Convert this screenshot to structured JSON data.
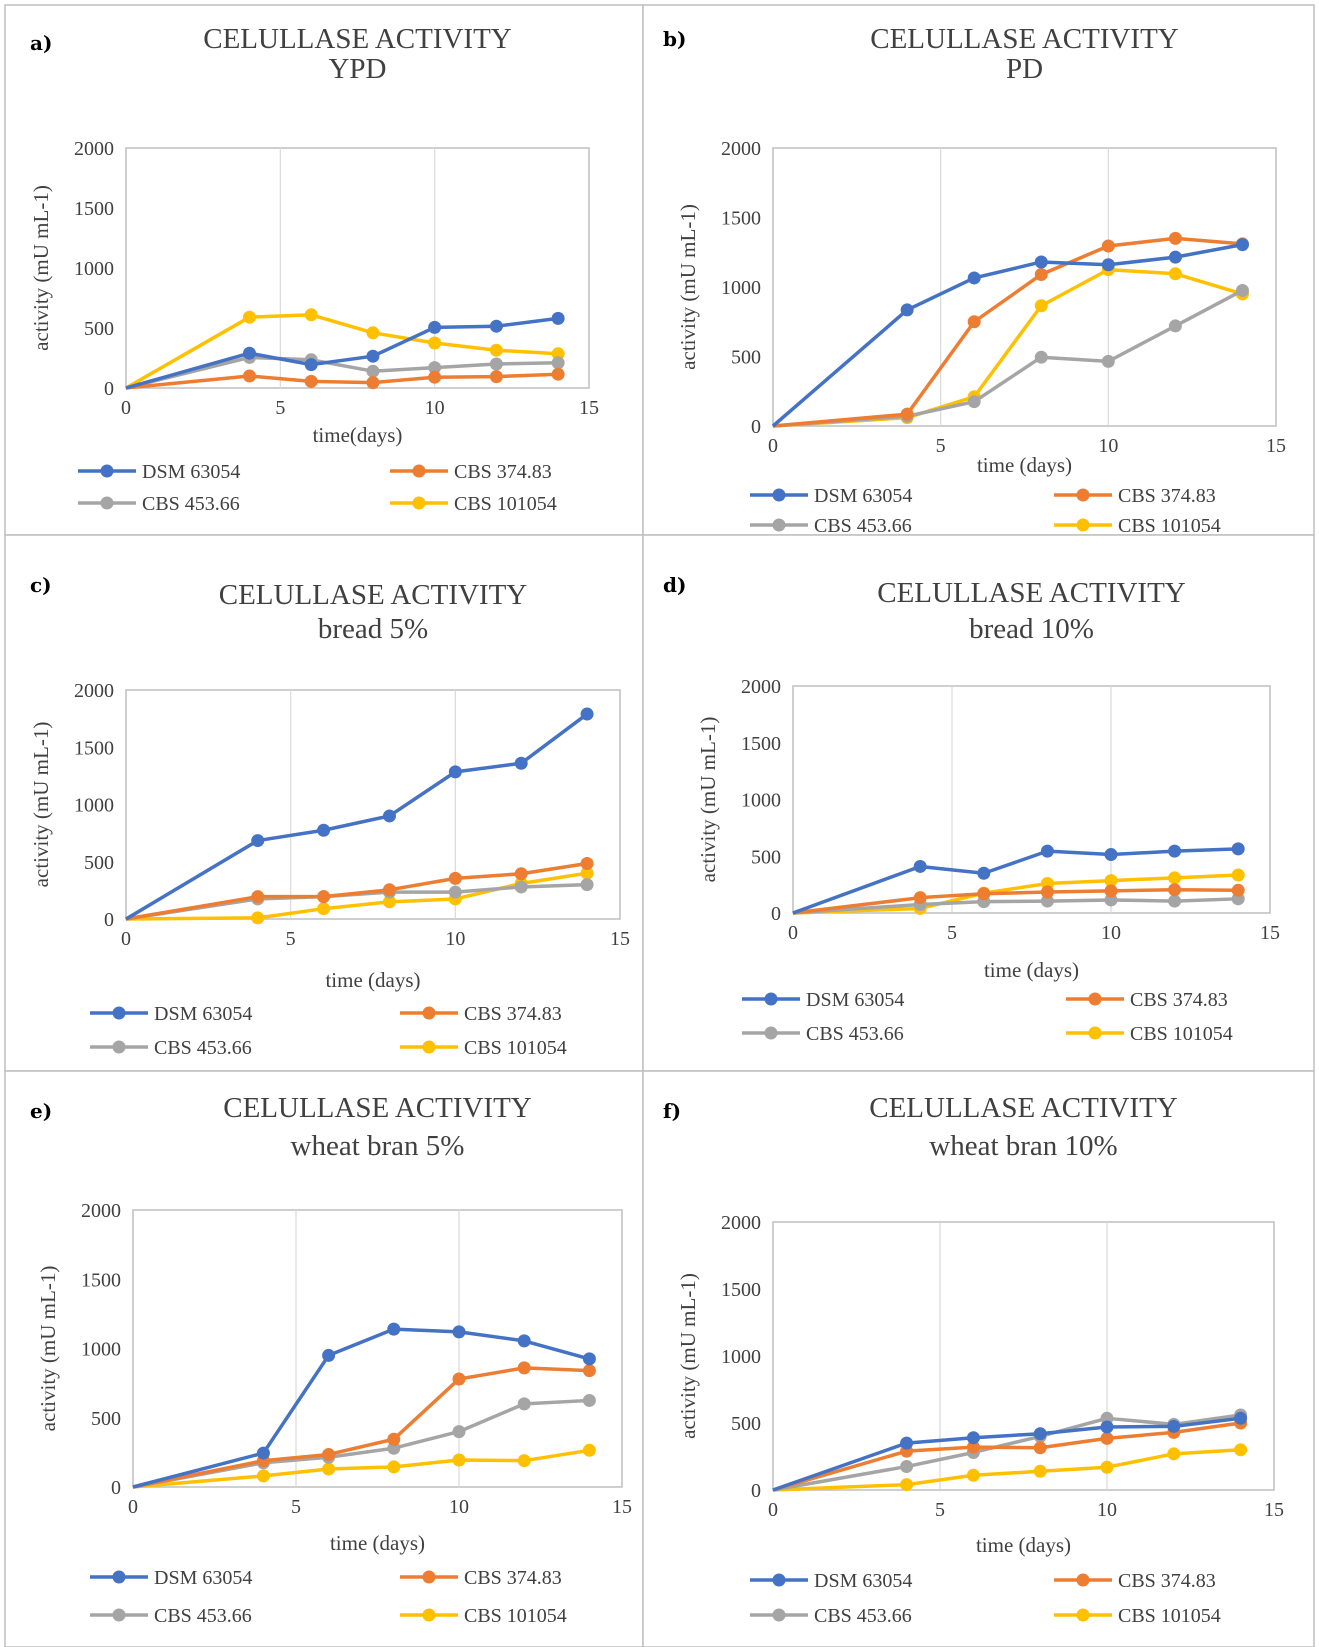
{
  "colors": {
    "DSM 63054": "#4472C4",
    "CBS 374.83": "#ED7D31",
    "CBS 453.66": "#A5A5A5",
    "CBS 101054": "#FFC000",
    "grid": "#d9d9d9",
    "panel_border": "#bfbfbf"
  },
  "chart_data": [
    {
      "type": "line",
      "panel_label": "a)",
      "title": "CELULLASE ACTIVITY",
      "subtitle": "YPD",
      "xlabel": "time(days)",
      "ylabel": "activity (mU mL-1)",
      "xlim": [
        0,
        15
      ],
      "ylim": [
        0,
        2000
      ],
      "xticks": [
        0,
        5,
        10,
        15
      ],
      "yticks": [
        0,
        500,
        1000,
        1500,
        2000
      ],
      "grid": "vertical",
      "legend": "bottom",
      "x": [
        0,
        4,
        6,
        8,
        10,
        12,
        14
      ],
      "series": [
        {
          "name": "DSM 63054",
          "values": [
            0,
            290,
            195,
            265,
            505,
            515,
            580
          ]
        },
        {
          "name": "CBS 374.83",
          "values": [
            0,
            100,
            55,
            45,
            90,
            95,
            115
          ]
        },
        {
          "name": "CBS 453.66",
          "values": [
            0,
            255,
            235,
            140,
            170,
            200,
            210
          ]
        },
        {
          "name": "CBS 101054",
          "values": [
            0,
            590,
            610,
            460,
            375,
            315,
            285
          ]
        }
      ]
    },
    {
      "type": "line",
      "panel_label": "b)",
      "title": "CELULLASE ACTIVITY",
      "subtitle": "PD",
      "xlabel": "time (days)",
      "ylabel": "activity (mU mL-1)",
      "xlim": [
        0,
        15
      ],
      "ylim": [
        0,
        2000
      ],
      "xticks": [
        0,
        5,
        10,
        15
      ],
      "yticks": [
        0,
        500,
        1000,
        1500,
        2000
      ],
      "grid": "vertical",
      "legend": "bottom",
      "x": [
        0,
        4,
        6,
        8,
        10,
        12,
        14
      ],
      "series": [
        {
          "name": "DSM 63054",
          "values": [
            0,
            835,
            1065,
            1180,
            1160,
            1215,
            1305
          ]
        },
        {
          "name": "CBS 374.83",
          "values": [
            0,
            85,
            750,
            1090,
            1295,
            1350,
            1310
          ]
        },
        {
          "name": "CBS 453.66",
          "values": [
            0,
            70,
            175,
            495,
            465,
            720,
            975
          ]
        },
        {
          "name": "CBS 101054",
          "values": [
            0,
            60,
            210,
            865,
            1125,
            1095,
            950
          ]
        }
      ]
    },
    {
      "type": "line",
      "panel_label": "c)",
      "title": "CELULLASE ACTIVITY",
      "subtitle": "bread 5%",
      "xlabel": "time (days)",
      "ylabel": "activity (mU mL-1)",
      "xlim": [
        0,
        15
      ],
      "ylim": [
        0,
        2000
      ],
      "xticks": [
        0,
        5,
        10,
        15
      ],
      "yticks": [
        0,
        500,
        1000,
        1500,
        2000
      ],
      "grid": "vertical",
      "legend": "bottom",
      "x": [
        0,
        4,
        6,
        8,
        10,
        12,
        14
      ],
      "series": [
        {
          "name": "DSM 63054",
          "values": [
            0,
            685,
            775,
            900,
            1285,
            1360,
            1790
          ]
        },
        {
          "name": "CBS 374.83",
          "values": [
            0,
            195,
            195,
            255,
            355,
            395,
            485
          ]
        },
        {
          "name": "CBS 453.66",
          "values": [
            0,
            175,
            195,
            235,
            235,
            280,
            300
          ]
        },
        {
          "name": "CBS 101054",
          "values": [
            0,
            10,
            90,
            150,
            175,
            310,
            400
          ]
        }
      ]
    },
    {
      "type": "line",
      "panel_label": "d)",
      "title": "CELULLASE ACTIVITY",
      "subtitle": "bread 10%",
      "xlabel": "time (days)",
      "ylabel": "activity (mU mL-1)",
      "xlim": [
        0,
        15
      ],
      "ylim": [
        0,
        2000
      ],
      "xticks": [
        0,
        5,
        10,
        15
      ],
      "yticks": [
        0,
        500,
        1000,
        1500,
        2000
      ],
      "grid": "vertical",
      "legend": "bottom",
      "x": [
        0,
        4,
        6,
        8,
        10,
        12,
        14
      ],
      "series": [
        {
          "name": "DSM 63054",
          "values": [
            0,
            410,
            350,
            545,
            515,
            545,
            565
          ]
        },
        {
          "name": "CBS 374.83",
          "values": [
            0,
            135,
            170,
            185,
            195,
            205,
            200
          ]
        },
        {
          "name": "CBS 453.66",
          "values": [
            0,
            75,
            100,
            105,
            115,
            105,
            125
          ]
        },
        {
          "name": "CBS 101054",
          "values": [
            0,
            40,
            175,
            260,
            285,
            310,
            335
          ]
        }
      ]
    },
    {
      "type": "line",
      "panel_label": "e)",
      "title": "CELULLASE ACTIVITY",
      "subtitle": "wheat bran 5%",
      "xlabel": "time (days)",
      "ylabel": "activity (mU mL-1)",
      "xlim": [
        0,
        15
      ],
      "ylim": [
        0,
        2000
      ],
      "xticks": [
        0,
        5,
        10,
        15
      ],
      "yticks": [
        0,
        500,
        1000,
        1500,
        2000
      ],
      "grid": "vertical",
      "legend": "bottom",
      "x": [
        0,
        4,
        6,
        8,
        10,
        12,
        14
      ],
      "series": [
        {
          "name": "DSM 63054",
          "values": [
            0,
            245,
            950,
            1140,
            1120,
            1055,
            925
          ]
        },
        {
          "name": "CBS 374.83",
          "values": [
            0,
            190,
            235,
            345,
            780,
            860,
            840
          ]
        },
        {
          "name": "CBS 453.66",
          "values": [
            0,
            175,
            215,
            280,
            400,
            600,
            625
          ]
        },
        {
          "name": "CBS 101054",
          "values": [
            0,
            80,
            130,
            145,
            195,
            190,
            265
          ]
        }
      ]
    },
    {
      "type": "line",
      "panel_label": "f)",
      "title": "CELULLASE ACTIVITY",
      "subtitle": "wheat bran 10%",
      "xlabel": "time (days)",
      "ylabel": "activity (mU mL-1)",
      "xlim": [
        0,
        15
      ],
      "ylim": [
        0,
        2000
      ],
      "xticks": [
        0,
        5,
        10,
        15
      ],
      "yticks": [
        0,
        500,
        1000,
        1500,
        2000
      ],
      "grid": "vertical",
      "legend": "bottom",
      "x": [
        0,
        4,
        6,
        8,
        10,
        12,
        14
      ],
      "series": [
        {
          "name": "DSM 63054",
          "values": [
            0,
            350,
            390,
            420,
            470,
            475,
            535
          ]
        },
        {
          "name": "CBS 374.83",
          "values": [
            0,
            290,
            320,
            315,
            385,
            430,
            500
          ]
        },
        {
          "name": "CBS 453.66",
          "values": [
            0,
            175,
            280,
            400,
            535,
            490,
            560
          ]
        },
        {
          "name": "CBS 101054",
          "values": [
            0,
            40,
            110,
            140,
            170,
            270,
            300
          ]
        }
      ]
    }
  ]
}
